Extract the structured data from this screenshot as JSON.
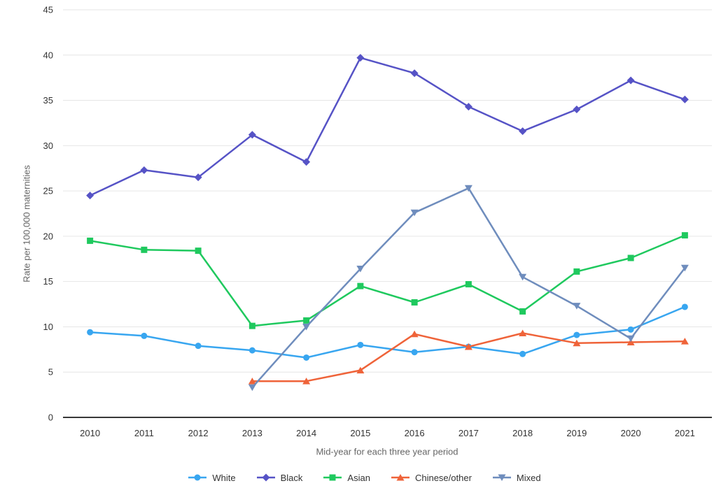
{
  "chart_data": {
    "type": "line",
    "title": "",
    "xlabel": "Mid-year for each three year period",
    "ylabel": "Rate per 100,000 maternities",
    "categories": [
      "2010",
      "2011",
      "2012",
      "2013",
      "2014",
      "2015",
      "2016",
      "2017",
      "2018",
      "2019",
      "2020",
      "2021"
    ],
    "ylim": [
      0,
      45
    ],
    "yticks": [
      0,
      5,
      10,
      15,
      20,
      25,
      30,
      35,
      40,
      45
    ],
    "grid": true,
    "legend_position": "bottom",
    "series": [
      {
        "name": "White",
        "color": "#38a6f0",
        "marker": "circle",
        "values": [
          9.4,
          9.0,
          7.9,
          7.4,
          6.6,
          8.0,
          7.2,
          7.8,
          7.0,
          9.1,
          9.7,
          12.2
        ]
      },
      {
        "name": "Black",
        "color": "#5653c6",
        "marker": "diamond",
        "values": [
          24.5,
          27.3,
          26.5,
          31.2,
          28.2,
          39.7,
          38.0,
          34.3,
          31.6,
          34.0,
          37.2,
          35.1
        ]
      },
      {
        "name": "Asian",
        "color": "#1fc95e",
        "marker": "square",
        "values": [
          19.5,
          18.5,
          18.4,
          10.1,
          10.7,
          14.5,
          12.7,
          14.7,
          11.7,
          16.1,
          17.6,
          20.1
        ]
      },
      {
        "name": "Chinese/other",
        "color": "#ef6339",
        "marker": "triangle-up",
        "values": [
          null,
          null,
          null,
          4.0,
          4.0,
          5.2,
          9.2,
          7.8,
          9.3,
          8.2,
          8.3,
          8.4
        ]
      },
      {
        "name": "Mixed",
        "color": "#6f8dbd",
        "marker": "triangle-down",
        "values": [
          null,
          null,
          null,
          3.3,
          10.0,
          16.4,
          22.6,
          25.3,
          15.5,
          12.3,
          8.7,
          16.5
        ]
      }
    ]
  },
  "colors": {
    "background": "#ffffff",
    "gridline": "#e6e6e6",
    "axis_line": "#383838",
    "tick_text": "#333333",
    "axis_title_text": "#666666",
    "legend_text": "#333333"
  }
}
